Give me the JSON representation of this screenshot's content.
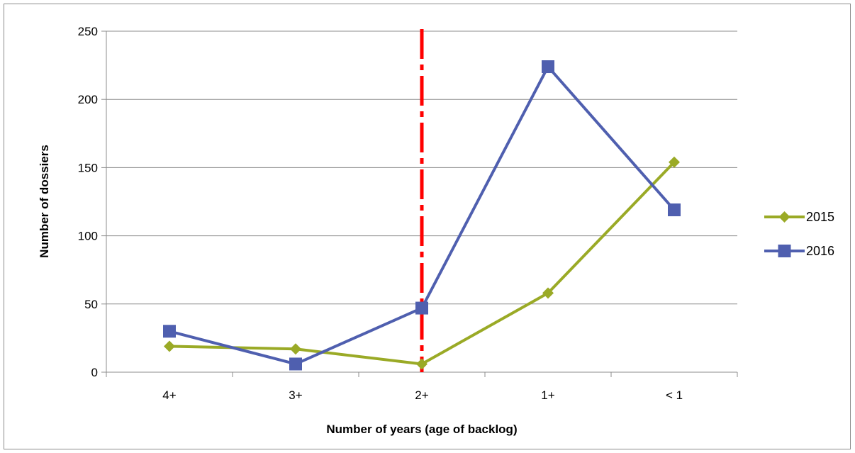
{
  "chart_data": {
    "type": "line",
    "categories": [
      "4+",
      "3+",
      "2+",
      "1+",
      "< 1"
    ],
    "series": [
      {
        "name": "2015",
        "values": [
          19,
          17,
          6,
          58,
          154
        ],
        "color": "#9aaa26",
        "marker": "diamond"
      },
      {
        "name": "2016",
        "values": [
          30,
          6,
          47,
          224,
          119
        ],
        "color": "#4f5faf",
        "marker": "square"
      }
    ],
    "xlabel": "Number of years (age of backlog)",
    "ylabel": "Number of dossiers",
    "ylim": [
      0,
      250
    ],
    "yticks": [
      "0",
      "50",
      "100",
      "150",
      "200",
      "250"
    ],
    "grid": true,
    "legend": "right",
    "annotation": {
      "type": "vertical-line",
      "at_category": "2+",
      "style": "dash-dot",
      "color": "#ff0000"
    }
  }
}
